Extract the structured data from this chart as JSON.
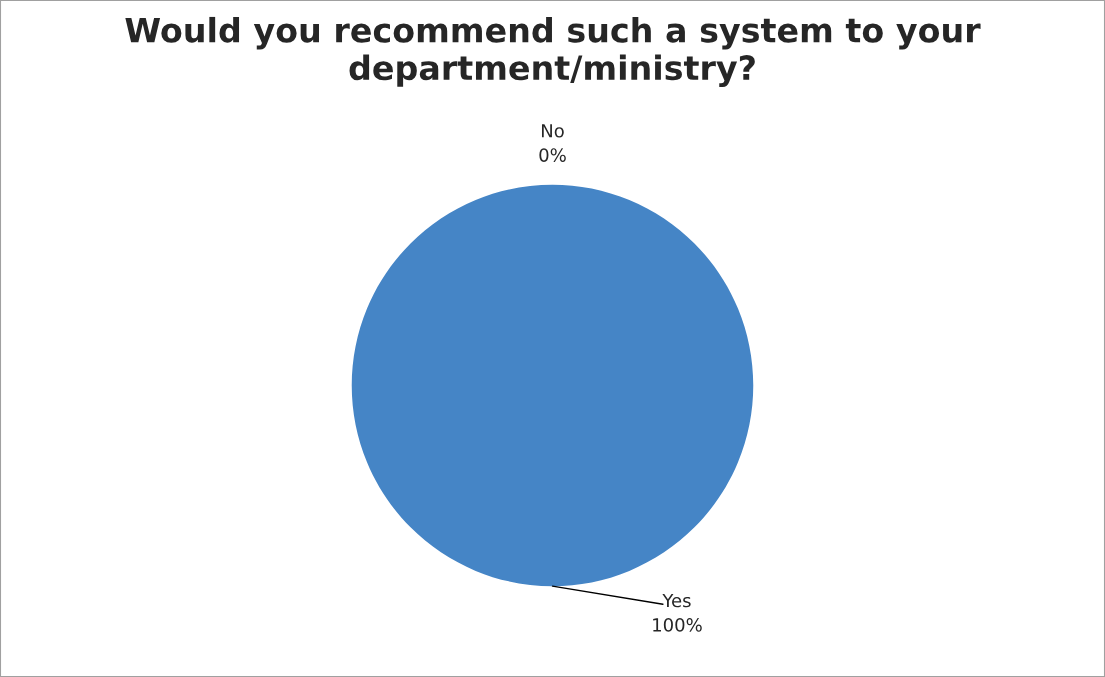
{
  "chart_data": {
    "type": "pie",
    "title": "Would you recommend such a system to your department/ministry?",
    "categories": [
      "Yes",
      "No"
    ],
    "values": [
      100,
      0
    ],
    "value_labels": [
      "100%",
      "0%"
    ],
    "colors": [
      "#4585c6",
      "#c0504d"
    ],
    "legend": false
  }
}
